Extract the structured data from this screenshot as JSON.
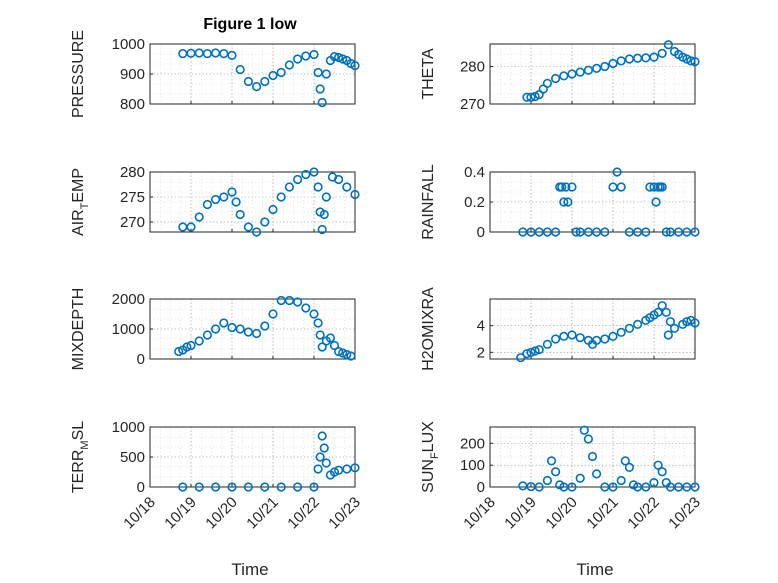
{
  "figure": {
    "title": "Figure 1 low",
    "marker_color": "#0072BD",
    "x_tick_labels": [
      "10/18",
      "10/19",
      "10/20",
      "10/21",
      "10/22",
      "10/23"
    ],
    "x_label": "Time"
  },
  "chart_data": [
    {
      "type": "scatter",
      "ylabel": "PRESSURE",
      "title": "Figure 1 low",
      "xlim": [
        0,
        5
      ],
      "ylim": [
        800,
        1000
      ],
      "yticks": [
        800,
        900,
        1000
      ],
      "grid": true,
      "x": [
        0.8,
        1.0,
        1.2,
        1.4,
        1.6,
        1.8,
        2.0,
        2.2,
        2.4,
        2.6,
        2.8,
        3.0,
        3.2,
        3.4,
        3.6,
        3.8,
        4.0,
        4.1,
        4.15,
        4.2,
        4.3,
        4.4,
        4.5,
        4.6,
        4.7,
        4.8,
        4.9,
        5.0
      ],
      "y": [
        968,
        969,
        970,
        968,
        970,
        968,
        962,
        915,
        875,
        858,
        875,
        895,
        905,
        930,
        950,
        960,
        965,
        905,
        850,
        805,
        900,
        945,
        958,
        955,
        950,
        945,
        935,
        928
      ]
    },
    {
      "type": "scatter",
      "ylabel": "THETA",
      "xlim": [
        0,
        5
      ],
      "ylim": [
        270,
        286
      ],
      "yticks": [
        270,
        280
      ],
      "grid": true,
      "x": [
        0.9,
        1.0,
        1.1,
        1.2,
        1.3,
        1.4,
        1.6,
        1.8,
        2.0,
        2.2,
        2.4,
        2.6,
        2.8,
        3.0,
        3.2,
        3.4,
        3.6,
        3.8,
        4.0,
        4.2,
        4.35,
        4.5,
        4.6,
        4.7,
        4.8,
        4.9,
        5.0
      ],
      "y": [
        271.8,
        271.8,
        272.0,
        272.5,
        274.0,
        275.5,
        276.8,
        277.5,
        278.0,
        278.5,
        279.0,
        279.5,
        280.0,
        280.8,
        281.5,
        282.0,
        282.2,
        282.3,
        282.5,
        283.5,
        285.8,
        284.0,
        283.2,
        282.5,
        282.0,
        281.5,
        281.3
      ]
    },
    {
      "type": "scatter",
      "ylabel": "AIR_TEMP",
      "xlim": [
        0,
        5
      ],
      "ylim": [
        268,
        280
      ],
      "yticks": [
        270,
        275,
        280
      ],
      "grid": true,
      "x": [
        0.8,
        1.0,
        1.2,
        1.4,
        1.6,
        1.8,
        2.0,
        2.1,
        2.2,
        2.4,
        2.6,
        2.8,
        3.0,
        3.2,
        3.4,
        3.6,
        3.8,
        4.0,
        4.1,
        4.15,
        4.2,
        4.25,
        4.3,
        4.45,
        4.6,
        4.8,
        5.0
      ],
      "y": [
        269,
        269,
        271,
        273.5,
        274.5,
        275,
        276,
        274,
        271.5,
        269,
        268,
        270,
        272.5,
        275,
        277,
        278.5,
        279.5,
        280,
        277,
        272,
        268.5,
        271.5,
        275,
        279,
        278.5,
        277,
        275.5
      ]
    },
    {
      "type": "scatter",
      "ylabel": "RAINFALL",
      "xlim": [
        0,
        5
      ],
      "ylim": [
        0,
        0.4
      ],
      "yticks": [
        0,
        0.2,
        0.4
      ],
      "grid": true,
      "x": [
        0.8,
        1.0,
        1.2,
        1.4,
        1.6,
        1.7,
        1.75,
        1.8,
        1.85,
        1.9,
        2.0,
        2.1,
        2.2,
        2.4,
        2.6,
        2.8,
        3.0,
        3.1,
        3.2,
        3.4,
        3.6,
        3.8,
        3.9,
        4.0,
        4.05,
        4.1,
        4.15,
        4.2,
        4.3,
        4.4,
        4.6,
        4.8,
        5.0
      ],
      "y": [
        0,
        0,
        0,
        0,
        0,
        0.3,
        0.3,
        0.2,
        0.3,
        0.2,
        0.3,
        0,
        0,
        0,
        0,
        0,
        0.3,
        0.4,
        0.3,
        0,
        0,
        0,
        0.3,
        0.3,
        0.2,
        0.3,
        0.3,
        0.3,
        0,
        0,
        0,
        0,
        0
      ]
    },
    {
      "type": "scatter",
      "ylabel": "MIXDEPTH",
      "xlim": [
        0,
        5
      ],
      "ylim": [
        0,
        2000
      ],
      "yticks": [
        0,
        1000,
        2000
      ],
      "grid": true,
      "x": [
        0.7,
        0.8,
        0.9,
        1.0,
        1.2,
        1.4,
        1.6,
        1.8,
        2.0,
        2.2,
        2.4,
        2.6,
        2.8,
        3.0,
        3.2,
        3.4,
        3.6,
        3.8,
        4.0,
        4.1,
        4.15,
        4.2,
        4.3,
        4.4,
        4.5,
        4.6,
        4.7,
        4.8,
        4.9
      ],
      "y": [
        250,
        300,
        400,
        450,
        600,
        800,
        1000,
        1200,
        1050,
        1000,
        900,
        850,
        1100,
        1500,
        1950,
        1950,
        1900,
        1700,
        1500,
        1200,
        800,
        400,
        600,
        700,
        450,
        250,
        200,
        150,
        100
      ]
    },
    {
      "type": "scatter",
      "ylabel": "H2OMIXRA",
      "xlim": [
        0,
        5
      ],
      "ylim": [
        1.5,
        6
      ],
      "yticks": [
        2,
        4
      ],
      "grid": true,
      "x": [
        0.75,
        0.9,
        1.0,
        1.1,
        1.2,
        1.4,
        1.6,
        1.8,
        2.0,
        2.2,
        2.4,
        2.5,
        2.6,
        2.8,
        3.0,
        3.2,
        3.4,
        3.6,
        3.8,
        3.9,
        4.0,
        4.1,
        4.2,
        4.3,
        4.35,
        4.4,
        4.5,
        4.7,
        4.8,
        4.9,
        5.0
      ],
      "y": [
        1.6,
        1.9,
        2.0,
        2.1,
        2.2,
        2.6,
        3.0,
        3.2,
        3.3,
        3.1,
        2.9,
        2.6,
        2.9,
        3.0,
        3.2,
        3.5,
        3.8,
        4.1,
        4.4,
        4.6,
        4.8,
        5.0,
        5.5,
        5.0,
        3.3,
        4.3,
        3.8,
        4.1,
        4.3,
        4.4,
        4.2
      ]
    },
    {
      "type": "scatter",
      "ylabel": "TERR_MSL",
      "xlim": [
        0,
        5
      ],
      "ylim": [
        0,
        1000
      ],
      "yticks": [
        0,
        500,
        1000
      ],
      "grid": true,
      "x": [
        0.8,
        1.2,
        1.6,
        2.0,
        2.4,
        2.8,
        3.2,
        3.6,
        4.0,
        4.1,
        4.15,
        4.2,
        4.25,
        4.3,
        4.4,
        4.5,
        4.6,
        4.8,
        5.0
      ],
      "y": [
        0,
        0,
        0,
        0,
        0,
        0,
        0,
        0,
        0,
        300,
        500,
        850,
        650,
        400,
        200,
        250,
        280,
        300,
        320
      ]
    },
    {
      "type": "scatter",
      "ylabel": "SUN_FLUX",
      "xlim": [
        0,
        5
      ],
      "ylim": [
        0,
        275
      ],
      "yticks": [
        0,
        100,
        200
      ],
      "grid": true,
      "x": [
        0.8,
        1.0,
        1.2,
        1.4,
        1.5,
        1.6,
        1.7,
        1.8,
        2.0,
        2.2,
        2.3,
        2.4,
        2.5,
        2.6,
        2.8,
        3.0,
        3.2,
        3.3,
        3.4,
        3.5,
        3.6,
        3.8,
        4.0,
        4.1,
        4.2,
        4.3,
        4.4,
        4.6,
        4.8,
        5.0
      ],
      "y": [
        5,
        2,
        0,
        30,
        120,
        70,
        10,
        0,
        0,
        40,
        260,
        220,
        140,
        60,
        0,
        0,
        30,
        120,
        90,
        10,
        0,
        0,
        20,
        100,
        70,
        20,
        0,
        0,
        0,
        0
      ]
    }
  ]
}
